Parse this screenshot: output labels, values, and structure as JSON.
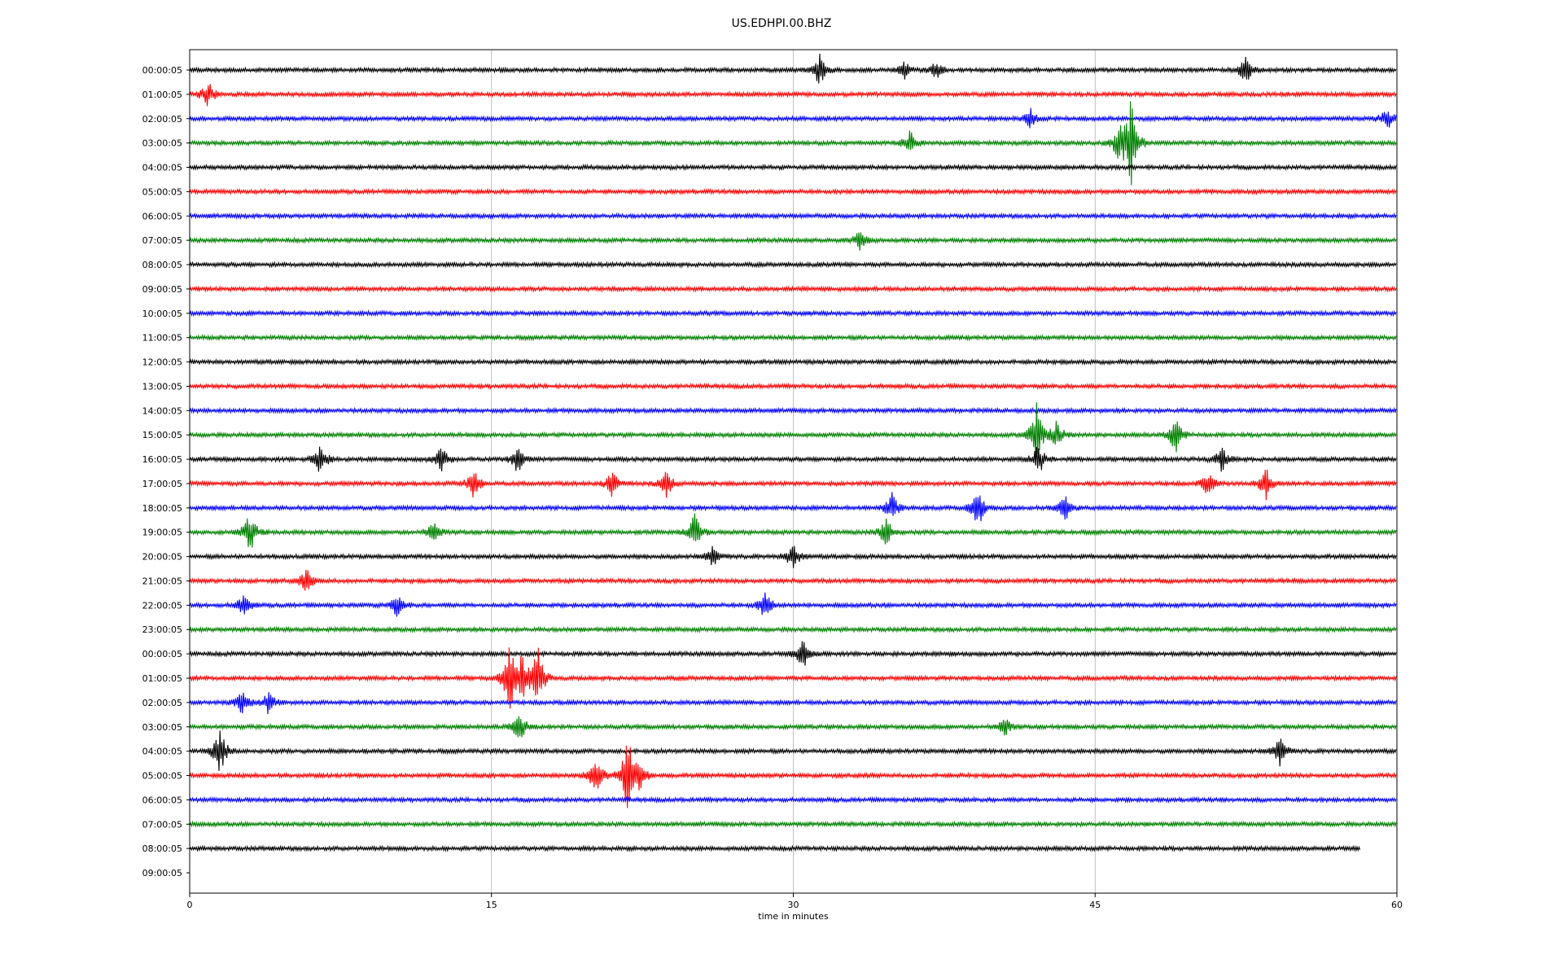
{
  "chart_data": {
    "type": "line",
    "title": "US.EDHPI.00.BHZ",
    "xlabel": "time in minutes",
    "ylabel": "",
    "xlim": [
      0,
      60
    ],
    "xticks": [
      0,
      15,
      30,
      45,
      60
    ],
    "x_gridlines": [
      15,
      30,
      45
    ],
    "row_labels": [
      "00:00:05",
      "01:00:05",
      "02:00:05",
      "03:00:05",
      "04:00:05",
      "05:00:05",
      "06:00:05",
      "07:00:05",
      "08:00:05",
      "09:00:05",
      "10:00:05",
      "11:00:05",
      "12:00:05",
      "13:00:05",
      "14:00:05",
      "15:00:05",
      "16:00:05",
      "17:00:05",
      "18:00:05",
      "19:00:05",
      "20:00:05",
      "21:00:05",
      "22:00:05",
      "23:00:05",
      "00:00:05",
      "01:00:05",
      "02:00:05",
      "03:00:05",
      "04:00:05",
      "05:00:05",
      "06:00:05",
      "07:00:05",
      "08:00:05",
      "09:00:05"
    ],
    "trace_colors": [
      "#000000",
      "#ff0000",
      "#0000ff",
      "#008000"
    ],
    "trace_count": 33,
    "last_trace_end_minute": 58.2,
    "events": [
      {
        "row": 0,
        "minute": 31.3,
        "amp": 0.7
      },
      {
        "row": 0,
        "minute": 52.5,
        "amp": 0.6
      },
      {
        "row": 0,
        "minute": 35.5,
        "amp": 0.4
      },
      {
        "row": 0,
        "minute": 37.1,
        "amp": 0.4
      },
      {
        "row": 1,
        "minute": 0.9,
        "amp": 0.6
      },
      {
        "row": 2,
        "minute": 59.5,
        "amp": 0.5
      },
      {
        "row": 2,
        "minute": 41.8,
        "amp": 0.4
      },
      {
        "row": 3,
        "minute": 46.8,
        "amp": 2.0
      },
      {
        "row": 3,
        "minute": 46.2,
        "amp": 0.8
      },
      {
        "row": 3,
        "minute": 35.8,
        "amp": 0.5
      },
      {
        "row": 7,
        "minute": 33.3,
        "amp": 0.4
      },
      {
        "row": 15,
        "minute": 42.1,
        "amp": 1.3
      },
      {
        "row": 15,
        "minute": 49.0,
        "amp": 0.8
      },
      {
        "row": 15,
        "minute": 43.1,
        "amp": 0.6
      },
      {
        "row": 16,
        "minute": 42.2,
        "amp": 0.7
      },
      {
        "row": 16,
        "minute": 6.5,
        "amp": 0.7
      },
      {
        "row": 16,
        "minute": 12.5,
        "amp": 0.6
      },
      {
        "row": 16,
        "minute": 16.3,
        "amp": 0.6
      },
      {
        "row": 16,
        "minute": 51.3,
        "amp": 0.5
      },
      {
        "row": 17,
        "minute": 14.1,
        "amp": 0.6
      },
      {
        "row": 17,
        "minute": 21.0,
        "amp": 0.6
      },
      {
        "row": 17,
        "minute": 23.7,
        "amp": 0.6
      },
      {
        "row": 17,
        "minute": 53.5,
        "amp": 0.7
      },
      {
        "row": 17,
        "minute": 50.6,
        "amp": 0.5
      },
      {
        "row": 18,
        "minute": 34.9,
        "amp": 0.6
      },
      {
        "row": 18,
        "minute": 39.2,
        "amp": 0.9
      },
      {
        "row": 18,
        "minute": 43.5,
        "amp": 0.6
      },
      {
        "row": 19,
        "minute": 3.0,
        "amp": 0.9
      },
      {
        "row": 19,
        "minute": 25.1,
        "amp": 0.8
      },
      {
        "row": 19,
        "minute": 34.6,
        "amp": 0.7
      },
      {
        "row": 19,
        "minute": 12.1,
        "amp": 0.5
      },
      {
        "row": 20,
        "minute": 30.0,
        "amp": 0.6
      },
      {
        "row": 20,
        "minute": 26.0,
        "amp": 0.4
      },
      {
        "row": 21,
        "minute": 5.8,
        "amp": 0.5
      },
      {
        "row": 22,
        "minute": 28.6,
        "amp": 0.6
      },
      {
        "row": 22,
        "minute": 10.3,
        "amp": 0.5
      },
      {
        "row": 22,
        "minute": 2.7,
        "amp": 0.5
      },
      {
        "row": 24,
        "minute": 30.5,
        "amp": 0.7
      },
      {
        "row": 25,
        "minute": 15.9,
        "amp": 1.4
      },
      {
        "row": 25,
        "minute": 17.3,
        "amp": 1.4
      },
      {
        "row": 25,
        "minute": 16.5,
        "amp": 0.9
      },
      {
        "row": 26,
        "minute": 2.6,
        "amp": 0.5
      },
      {
        "row": 26,
        "minute": 3.9,
        "amp": 0.5
      },
      {
        "row": 27,
        "minute": 16.4,
        "amp": 0.7
      },
      {
        "row": 27,
        "minute": 40.5,
        "amp": 0.4
      },
      {
        "row": 28,
        "minute": 1.5,
        "amp": 1.0
      },
      {
        "row": 28,
        "minute": 54.2,
        "amp": 0.6
      },
      {
        "row": 29,
        "minute": 21.8,
        "amp": 2.0
      },
      {
        "row": 29,
        "minute": 20.2,
        "amp": 0.9
      },
      {
        "row": 29,
        "minute": 22.4,
        "amp": 0.6
      }
    ]
  }
}
